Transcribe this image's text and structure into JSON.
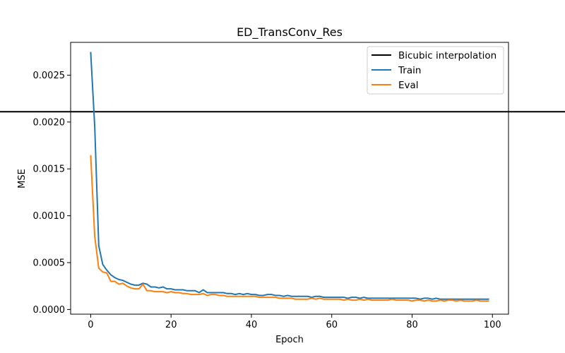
{
  "chart_data": {
    "type": "line",
    "title": "ED_TransConv_Res",
    "xlabel": "Epoch",
    "ylabel": "MSE",
    "xlim": [
      -5,
      104
    ],
    "ylim": [
      -5e-05,
      0.00285
    ],
    "xticks": [
      0,
      20,
      40,
      60,
      80,
      100
    ],
    "xtick_labels": [
      "0",
      "20",
      "40",
      "60",
      "80",
      "100"
    ],
    "yticks": [
      0.0,
      0.0005,
      0.001,
      0.0015,
      0.002,
      0.0025
    ],
    "ytick_labels": [
      "0.0000",
      "0.0005",
      "0.0010",
      "0.0015",
      "0.0020",
      "0.0025"
    ],
    "grid": false,
    "legend_position": "top-right",
    "hlines": [
      {
        "name": "Bicubic interpolation",
        "y": 0.00211,
        "color": "#000000"
      }
    ],
    "series": [
      {
        "name": "Train",
        "color": "#1f77b4",
        "x": [
          0,
          1,
          2,
          3,
          4,
          5,
          6,
          7,
          8,
          9,
          10,
          11,
          12,
          13,
          14,
          15,
          16,
          17,
          18,
          19,
          20,
          21,
          22,
          23,
          24,
          25,
          26,
          27,
          28,
          29,
          30,
          31,
          32,
          33,
          34,
          35,
          36,
          37,
          38,
          39,
          40,
          41,
          42,
          43,
          44,
          45,
          46,
          47,
          48,
          49,
          50,
          51,
          52,
          53,
          54,
          55,
          56,
          57,
          58,
          59,
          60,
          61,
          62,
          63,
          64,
          65,
          66,
          67,
          68,
          69,
          70,
          71,
          72,
          73,
          74,
          75,
          76,
          77,
          78,
          79,
          80,
          81,
          82,
          83,
          84,
          85,
          86,
          87,
          88,
          89,
          90,
          91,
          92,
          93,
          94,
          95,
          96,
          97,
          98,
          99
        ],
        "values": [
          0.00274,
          0.00195,
          0.00068,
          0.00048,
          0.00042,
          0.00037,
          0.00034,
          0.00032,
          0.00031,
          0.00029,
          0.00027,
          0.00026,
          0.00026,
          0.00028,
          0.00027,
          0.00024,
          0.00024,
          0.00023,
          0.00024,
          0.00022,
          0.00022,
          0.00021,
          0.00021,
          0.00021,
          0.0002,
          0.0002,
          0.0002,
          0.00018,
          0.00021,
          0.00018,
          0.00018,
          0.00018,
          0.00018,
          0.00018,
          0.00017,
          0.00017,
          0.00016,
          0.00017,
          0.00016,
          0.00017,
          0.00016,
          0.00016,
          0.00015,
          0.00015,
          0.00016,
          0.00016,
          0.00015,
          0.00015,
          0.00014,
          0.00015,
          0.00014,
          0.00014,
          0.00014,
          0.00014,
          0.00014,
          0.00013,
          0.00014,
          0.00014,
          0.00013,
          0.00013,
          0.00013,
          0.00013,
          0.00013,
          0.00013,
          0.00012,
          0.00013,
          0.00013,
          0.00012,
          0.00013,
          0.00012,
          0.00012,
          0.00012,
          0.00012,
          0.00012,
          0.00012,
          0.00012,
          0.00012,
          0.00012,
          0.00012,
          0.00012,
          0.00012,
          0.00012,
          0.00011,
          0.00012,
          0.00012,
          0.00011,
          0.00012,
          0.00011,
          0.00011,
          0.00011,
          0.00011,
          0.00011,
          0.00011,
          0.00011,
          0.00011,
          0.00011,
          0.00011,
          0.00011,
          0.00011,
          0.00011
        ]
      },
      {
        "name": "Eval",
        "color": "#ff7f0e",
        "x": [
          0,
          1,
          2,
          3,
          4,
          5,
          6,
          7,
          8,
          9,
          10,
          11,
          12,
          13,
          14,
          15,
          16,
          17,
          18,
          19,
          20,
          21,
          22,
          23,
          24,
          25,
          26,
          27,
          28,
          29,
          30,
          31,
          32,
          33,
          34,
          35,
          36,
          37,
          38,
          39,
          40,
          41,
          42,
          43,
          44,
          45,
          46,
          47,
          48,
          49,
          50,
          51,
          52,
          53,
          54,
          55,
          56,
          57,
          58,
          59,
          60,
          61,
          62,
          63,
          64,
          65,
          66,
          67,
          68,
          69,
          70,
          71,
          72,
          73,
          74,
          75,
          76,
          77,
          78,
          79,
          80,
          81,
          82,
          83,
          84,
          85,
          86,
          87,
          88,
          89,
          90,
          91,
          92,
          93,
          94,
          95,
          96,
          97,
          98,
          99
        ],
        "values": [
          0.00164,
          0.00078,
          0.00044,
          0.0004,
          0.00039,
          0.0003,
          0.0003,
          0.00027,
          0.00028,
          0.00025,
          0.00023,
          0.00022,
          0.00022,
          0.00027,
          0.0002,
          0.0002,
          0.00019,
          0.00019,
          0.00019,
          0.00018,
          0.00019,
          0.00018,
          0.00018,
          0.00017,
          0.00017,
          0.00016,
          0.00016,
          0.00016,
          0.00017,
          0.00015,
          0.00016,
          0.00016,
          0.00015,
          0.00015,
          0.00014,
          0.00014,
          0.00014,
          0.00014,
          0.00014,
          0.00014,
          0.00014,
          0.00014,
          0.00013,
          0.00013,
          0.00013,
          0.00013,
          0.00013,
          0.00012,
          0.00012,
          0.00012,
          0.00012,
          0.00011,
          0.00011,
          0.00011,
          0.00011,
          0.00012,
          0.00011,
          0.00012,
          0.00011,
          0.00011,
          0.00011,
          0.00011,
          0.00011,
          0.0001,
          0.00011,
          0.0001,
          0.0001,
          0.00011,
          0.0001,
          0.00011,
          0.0001,
          0.0001,
          0.0001,
          0.0001,
          0.0001,
          0.00011,
          0.0001,
          0.0001,
          0.0001,
          0.0001,
          9e-05,
          0.0001,
          0.0001,
          9e-05,
          0.0001,
          9e-05,
          9e-05,
          0.0001,
          9e-05,
          0.0001,
          0.0001,
          9e-05,
          0.0001,
          9e-05,
          9e-05,
          9e-05,
          0.0001,
          9e-05,
          9e-05,
          9e-05
        ]
      }
    ]
  }
}
